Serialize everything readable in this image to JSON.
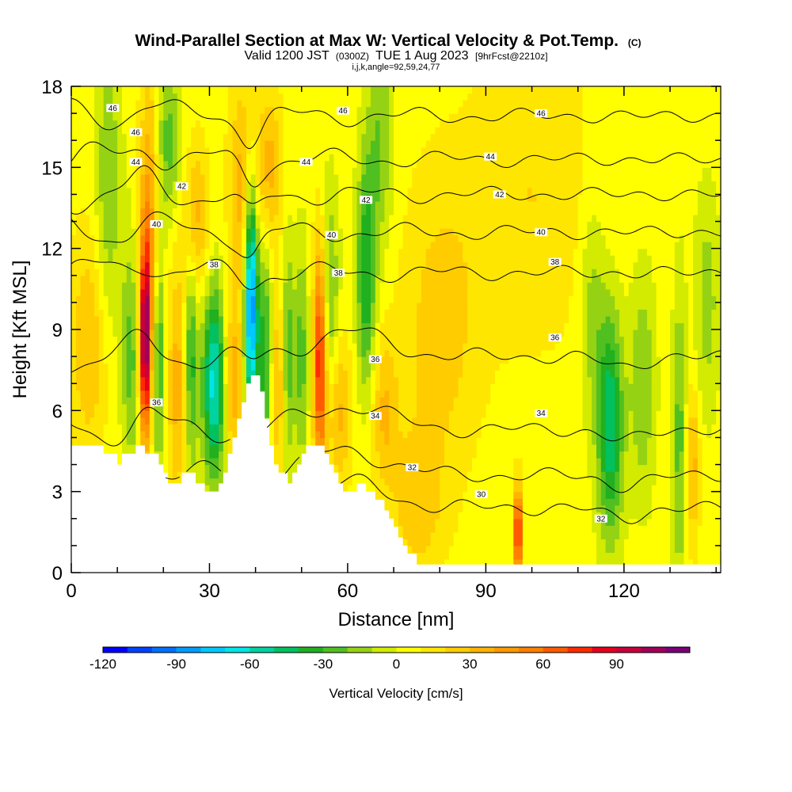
{
  "chart_data": {
    "type": "heatmap",
    "title": "Wind-Parallel Section at Max W: Vertical Velocity & Pot.Temp.",
    "title_mark": "(C)",
    "subtitle": {
      "prefix": "Valid 1200 JST",
      "utc": "(0300Z)",
      "date": "TUE 1 Aug 2023",
      "fcst": "[9hrFcst@2210z]"
    },
    "subtitle2": "i,j,k,angle=92,59,24,77",
    "xlabel": "Distance [nm]",
    "ylabel": "Height [Kft MSL]",
    "xlim": [
      0,
      141
    ],
    "ylim": [
      0,
      18
    ],
    "x_ticks": [
      "0",
      "30",
      "60",
      "90",
      "120"
    ],
    "y_ticks": [
      "0",
      "3",
      "6",
      "9",
      "12",
      "15",
      "18"
    ],
    "x_tick_values": [
      0,
      30,
      60,
      90,
      120
    ],
    "y_tick_values": [
      0,
      3,
      6,
      9,
      12,
      15,
      18
    ],
    "colorbar": {
      "label": "Vertical Velocity [cm/s]",
      "range": [
        -120,
        110
      ],
      "step": 10,
      "tick_labels": [
        "-120",
        "-90",
        "-60",
        "-30",
        "0",
        "30",
        "60",
        "90"
      ],
      "tick_values": [
        -120,
        -90,
        -60,
        -30,
        0,
        30,
        60,
        90
      ],
      "colors": [
        "#0000ff",
        "#0040ff",
        "#0070ff",
        "#009cff",
        "#00c8ff",
        "#00e6e6",
        "#00d2a0",
        "#00c060",
        "#20b020",
        "#50c020",
        "#96d214",
        "#d2eb00",
        "#ffff00",
        "#ffe600",
        "#ffcc00",
        "#ffb300",
        "#ff9900",
        "#ff7f00",
        "#ff5a00",
        "#ff2a00",
        "#e6001e",
        "#c8003c",
        "#a0005a",
        "#780078"
      ]
    },
    "velocity_features": [
      {
        "x": 4,
        "z": 8.5,
        "w": 25,
        "sx": 3,
        "sz": 3
      },
      {
        "x": 8,
        "z": 14,
        "w": -25,
        "sx": 2,
        "sz": 4
      },
      {
        "x": 13,
        "z": 8,
        "w": -30,
        "sx": 1.5,
        "sz": 3
      },
      {
        "x": 16,
        "z": 8.5,
        "w": 100,
        "sx": 0.9,
        "sz": 2.5
      },
      {
        "x": 17,
        "z": 13,
        "w": 40,
        "sx": 1.5,
        "sz": 4
      },
      {
        "x": 19,
        "z": 8,
        "w": -40,
        "sx": 1,
        "sz": 3
      },
      {
        "x": 21,
        "z": 16,
        "w": -30,
        "sx": 2,
        "sz": 2
      },
      {
        "x": 23,
        "z": 7,
        "w": 30,
        "sx": 1.5,
        "sz": 3
      },
      {
        "x": 26,
        "z": 8,
        "w": -40,
        "sx": 1,
        "sz": 3
      },
      {
        "x": 27,
        "z": 13,
        "w": 30,
        "sx": 2,
        "sz": 2
      },
      {
        "x": 31,
        "z": 7,
        "w": -70,
        "sx": 1.8,
        "sz": 2.5
      },
      {
        "x": 35,
        "z": 7,
        "w": 35,
        "sx": 1.5,
        "sz": 2
      },
      {
        "x": 37,
        "z": 14,
        "w": 30,
        "sx": 2,
        "sz": 3
      },
      {
        "x": 39,
        "z": 10,
        "w": -100,
        "sx": 1,
        "sz": 3
      },
      {
        "x": 42,
        "z": 8,
        "w": -40,
        "sx": 1.2,
        "sz": 3
      },
      {
        "x": 43,
        "z": 15,
        "w": 30,
        "sx": 2,
        "sz": 2
      },
      {
        "x": 45,
        "z": 7,
        "w": 30,
        "sx": 1.2,
        "sz": 2.5
      },
      {
        "x": 47,
        "z": 8,
        "w": -35,
        "sx": 1,
        "sz": 3
      },
      {
        "x": 50,
        "z": 8,
        "w": -30,
        "sx": 1,
        "sz": 3
      },
      {
        "x": 54,
        "z": 8,
        "w": 80,
        "sx": 1,
        "sz": 3
      },
      {
        "x": 56,
        "z": 10,
        "w": -30,
        "sx": 1.5,
        "sz": 3
      },
      {
        "x": 58,
        "z": 6,
        "w": 30,
        "sx": 2,
        "sz": 2
      },
      {
        "x": 64,
        "z": 11,
        "w": -45,
        "sx": 1.5,
        "sz": 3
      },
      {
        "x": 67,
        "z": 16,
        "w": -25,
        "sx": 2,
        "sz": 3
      },
      {
        "x": 68,
        "z": 6,
        "w": 25,
        "sx": 2,
        "sz": 2
      },
      {
        "x": 75,
        "z": 2.5,
        "w": 20,
        "sx": 4,
        "sz": 2
      },
      {
        "x": 80,
        "z": 9,
        "w": 20,
        "sx": 6,
        "sz": 4
      },
      {
        "x": 97,
        "z": 1.5,
        "w": 85,
        "sx": 0.6,
        "sz": 1.2
      },
      {
        "x": 100,
        "z": 14,
        "w": 15,
        "sx": 10,
        "sz": 4
      },
      {
        "x": 113,
        "z": 10,
        "w": -20,
        "sx": 2,
        "sz": 3
      },
      {
        "x": 117,
        "z": 5.5,
        "w": -55,
        "sx": 2,
        "sz": 3
      },
      {
        "x": 124,
        "z": 7,
        "w": -25,
        "sx": 2,
        "sz": 3
      },
      {
        "x": 132,
        "z": 5,
        "w": -30,
        "sx": 1,
        "sz": 4
      },
      {
        "x": 135,
        "z": 4,
        "w": 30,
        "sx": 1,
        "sz": 2
      },
      {
        "x": 138,
        "z": 10,
        "w": -20,
        "sx": 2,
        "sz": 3
      }
    ],
    "theta_levels": [
      30,
      32,
      34,
      36,
      38,
      40,
      42,
      44,
      46
    ],
    "theta_labels": [
      {
        "text": "46",
        "x": 9,
        "z": 17.2
      },
      {
        "text": "46",
        "x": 14,
        "z": 16.3
      },
      {
        "text": "44",
        "x": 14,
        "z": 15.2
      },
      {
        "text": "42",
        "x": 24,
        "z": 14.3
      },
      {
        "text": "40",
        "x": 18.5,
        "z": 12.9
      },
      {
        "text": "38",
        "x": 31,
        "z": 11.4
      },
      {
        "text": "36",
        "x": 18.5,
        "z": 6.3
      },
      {
        "text": "46",
        "x": 59,
        "z": 17.1
      },
      {
        "text": "44",
        "x": 51,
        "z": 15.2
      },
      {
        "text": "42",
        "x": 64,
        "z": 13.8
      },
      {
        "text": "40",
        "x": 56.5,
        "z": 12.5
      },
      {
        "text": "38",
        "x": 58,
        "z": 11.1
      },
      {
        "text": "36",
        "x": 66,
        "z": 7.9
      },
      {
        "text": "34",
        "x": 66,
        "z": 5.8
      },
      {
        "text": "32",
        "x": 74,
        "z": 3.9
      },
      {
        "text": "30",
        "x": 89,
        "z": 2.9
      },
      {
        "text": "46",
        "x": 102,
        "z": 17.0
      },
      {
        "text": "44",
        "x": 91,
        "z": 15.4
      },
      {
        "text": "42",
        "x": 93,
        "z": 14.0
      },
      {
        "text": "40",
        "x": 102,
        "z": 12.6
      },
      {
        "text": "38",
        "x": 105,
        "z": 11.5
      },
      {
        "text": "36",
        "x": 105,
        "z": 8.7
      },
      {
        "text": "34",
        "x": 102,
        "z": 5.9
      },
      {
        "text": "32",
        "x": 115,
        "z": 2.0
      }
    ],
    "terrain": [
      [
        0,
        4.7
      ],
      [
        6,
        4.7
      ],
      [
        7,
        4.4
      ],
      [
        9,
        4.4
      ],
      [
        10,
        4.0
      ],
      [
        11,
        4.4
      ],
      [
        13,
        4.4
      ],
      [
        14,
        4.7
      ],
      [
        16,
        4.4
      ],
      [
        18,
        4.4
      ],
      [
        19,
        4.0
      ],
      [
        20,
        3.7
      ],
      [
        21,
        3.3
      ],
      [
        23,
        3.3
      ],
      [
        24,
        3.7
      ],
      [
        26,
        3.7
      ],
      [
        27,
        3.3
      ],
      [
        28,
        3.3
      ],
      [
        29,
        3.0
      ],
      [
        31,
        3.0
      ],
      [
        32,
        3.3
      ],
      [
        33,
        3.7
      ],
      [
        34,
        4.4
      ],
      [
        35,
        5.0
      ],
      [
        36,
        5.7
      ],
      [
        37,
        6.3
      ],
      [
        38,
        7.0
      ],
      [
        39,
        7.3
      ],
      [
        40,
        7.3
      ],
      [
        41,
        6.7
      ],
      [
        42,
        5.7
      ],
      [
        43,
        4.7
      ],
      [
        44,
        4.0
      ],
      [
        45,
        3.7
      ],
      [
        46,
        3.7
      ],
      [
        47,
        3.3
      ],
      [
        48,
        3.7
      ],
      [
        49,
        4.0
      ],
      [
        50,
        4.4
      ],
      [
        51,
        4.7
      ],
      [
        54,
        4.7
      ],
      [
        55,
        4.4
      ],
      [
        56,
        4.0
      ],
      [
        57,
        3.7
      ],
      [
        58,
        3.3
      ],
      [
        59,
        3.0
      ],
      [
        61,
        3.0
      ],
      [
        62,
        3.3
      ],
      [
        63,
        3.3
      ],
      [
        64,
        3.0
      ],
      [
        65,
        3.0
      ],
      [
        66,
        2.7
      ],
      [
        67,
        2.7
      ],
      [
        68,
        2.3
      ],
      [
        69,
        2.0
      ],
      [
        70,
        1.7
      ],
      [
        71,
        1.3
      ],
      [
        72,
        1.0
      ],
      [
        73,
        0.7
      ],
      [
        74,
        0.7
      ],
      [
        75,
        0.3
      ],
      [
        141,
        0.3
      ]
    ]
  }
}
